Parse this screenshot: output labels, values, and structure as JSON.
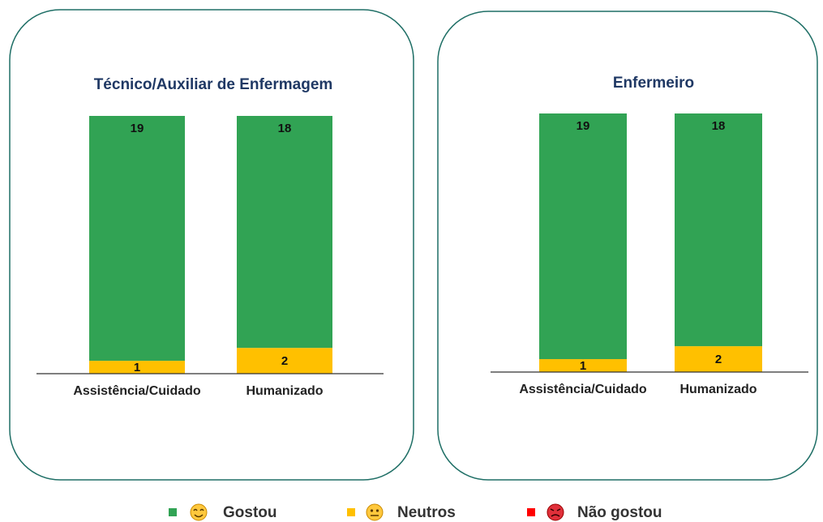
{
  "chart_data": [
    {
      "type": "stacked_bar",
      "title": "Técnico/Auxiliar de Enfermagem",
      "categories": [
        "Assistência/Cuidado",
        "Humanizado"
      ],
      "series": [
        {
          "name": "Gostou",
          "color": "#31a354",
          "values": [
            19,
            18
          ]
        },
        {
          "name": "Neutros",
          "color": "#ffc000",
          "values": [
            1,
            2
          ]
        },
        {
          "name": "Não gostou",
          "color": "#ff0000",
          "values": [
            0,
            0
          ]
        }
      ],
      "ylim": [
        0,
        20
      ]
    },
    {
      "type": "stacked_bar",
      "title": "Enfermeiro",
      "categories": [
        "Assistência/Cuidado",
        "Humanizado"
      ],
      "series": [
        {
          "name": "Gostou",
          "color": "#31a354",
          "values": [
            19,
            18
          ]
        },
        {
          "name": "Neutros",
          "color": "#ffc000",
          "values": [
            1,
            2
          ]
        },
        {
          "name": "Não gostou",
          "color": "#ff0000",
          "values": [
            0,
            0
          ]
        }
      ],
      "ylim": [
        0,
        20
      ]
    }
  ]
}
